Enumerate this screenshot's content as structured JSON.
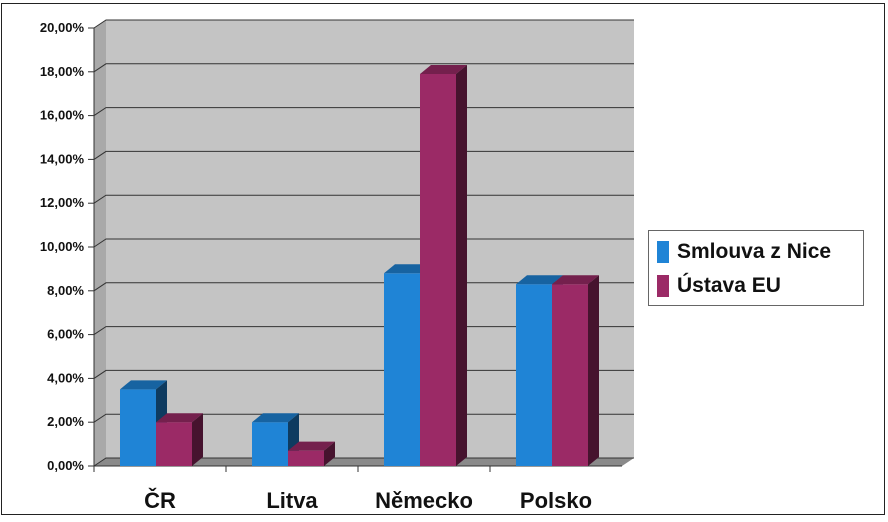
{
  "chart_data": {
    "type": "bar",
    "categories": [
      "ČR",
      "Litva",
      "Německo",
      "Polsko"
    ],
    "series": [
      {
        "name": "Smlouva z Nice",
        "values": [
          3.5,
          2.0,
          8.8,
          8.3
        ],
        "color": "#1f84d6"
      },
      {
        "name": "Ústava EU",
        "values": [
          2.0,
          0.7,
          17.9,
          8.3
        ],
        "color": "#9b2a66"
      }
    ],
    "yticks": [
      "0,00%",
      "2,00%",
      "4,00%",
      "6,00%",
      "8,00%",
      "10,00%",
      "12,00%",
      "14,00%",
      "16,00%",
      "18,00%",
      "20,00%"
    ],
    "ylim": [
      0,
      20
    ],
    "grid": true,
    "legend_position": "right",
    "three_d": true
  }
}
